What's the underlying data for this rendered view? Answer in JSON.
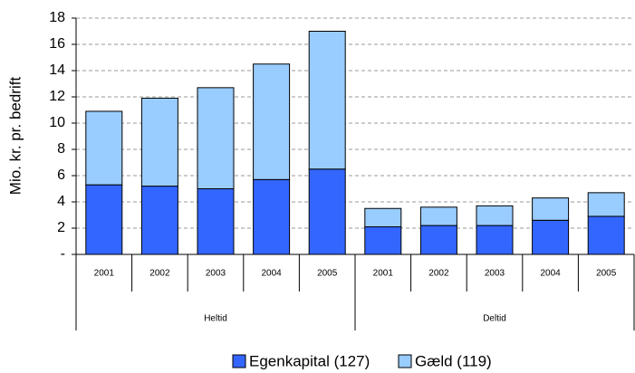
{
  "chart_data": {
    "type": "stacked_bar",
    "ylabel": "Mio. kr. pr. bedrift",
    "groups": [
      {
        "name": "Heltid",
        "categories": [
          "2001",
          "2002",
          "2003",
          "2004",
          "2005"
        ]
      },
      {
        "name": "Deltid",
        "categories": [
          "2001",
          "2002",
          "2003",
          "2004",
          "2005"
        ]
      }
    ],
    "series": [
      {
        "name": "Egenkapital (127)",
        "color": "#3366ff",
        "values": [
          5.3,
          5.2,
          5.0,
          5.7,
          6.5,
          2.1,
          2.2,
          2.2,
          2.6,
          2.9
        ]
      },
      {
        "name": "Gæld (119)",
        "color": "#99ccff",
        "values": [
          5.6,
          6.7,
          7.7,
          8.8,
          10.5,
          1.4,
          1.4,
          1.5,
          1.7,
          1.8
        ]
      }
    ],
    "ylim": [
      0,
      18
    ],
    "yticks": [
      {
        "value": 0,
        "label": "-"
      },
      2,
      4,
      6,
      8,
      10,
      12,
      14,
      16,
      18
    ],
    "grid": true
  }
}
